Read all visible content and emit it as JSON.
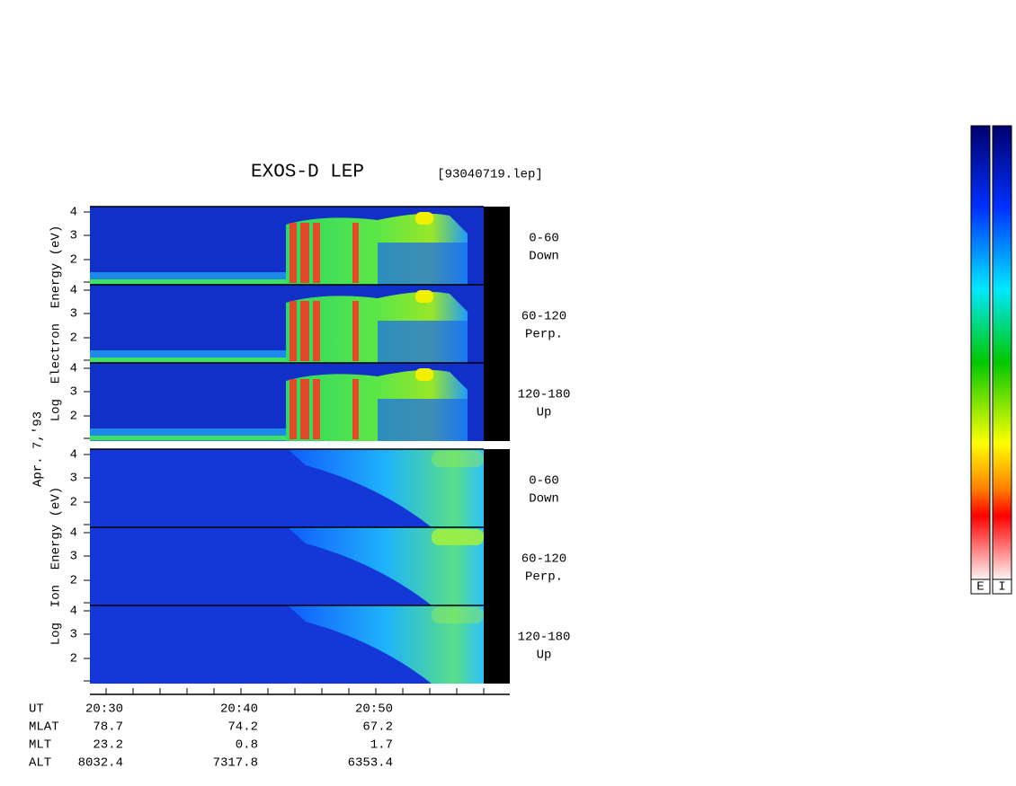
{
  "title": "EXOS-D LEP",
  "file": "[93040719.lep]",
  "date": "Apr. 7,'93",
  "electron_label": "Log  Electron  Energy (eV)",
  "ion_label": "Log  Ion  Energy (eV)",
  "panels": [
    {
      "species": "electron",
      "ticks": [
        4,
        3,
        2
      ],
      "angle": "0-60",
      "direction": "Down"
    },
    {
      "species": "electron",
      "ticks": [
        4,
        3,
        2
      ],
      "angle": "60-120",
      "direction": "Perp."
    },
    {
      "species": "electron",
      "ticks": [
        4,
        3,
        2
      ],
      "angle": "120-180",
      "direction": "Up"
    },
    {
      "species": "ion",
      "ticks": [
        4,
        3,
        2
      ],
      "angle": "0-60",
      "direction": "Down"
    },
    {
      "species": "ion",
      "ticks": [
        4,
        3,
        2
      ],
      "angle": "60-120",
      "direction": "Perp."
    },
    {
      "species": "ion",
      "ticks": [
        4,
        3,
        2
      ],
      "angle": "120-180",
      "direction": "Up"
    }
  ],
  "orbit": {
    "row_labels": [
      "UT",
      "MLAT",
      "MLT",
      "ALT"
    ],
    "columns": [
      [
        "20:30",
        "78.7",
        "23.2",
        "8032.4"
      ],
      [
        "20:40",
        "74.2",
        "0.8",
        "7317.8"
      ],
      [
        "20:50",
        "67.2",
        "1.7",
        "6353.4"
      ]
    ]
  },
  "colorbars": [
    "E",
    "I"
  ]
}
